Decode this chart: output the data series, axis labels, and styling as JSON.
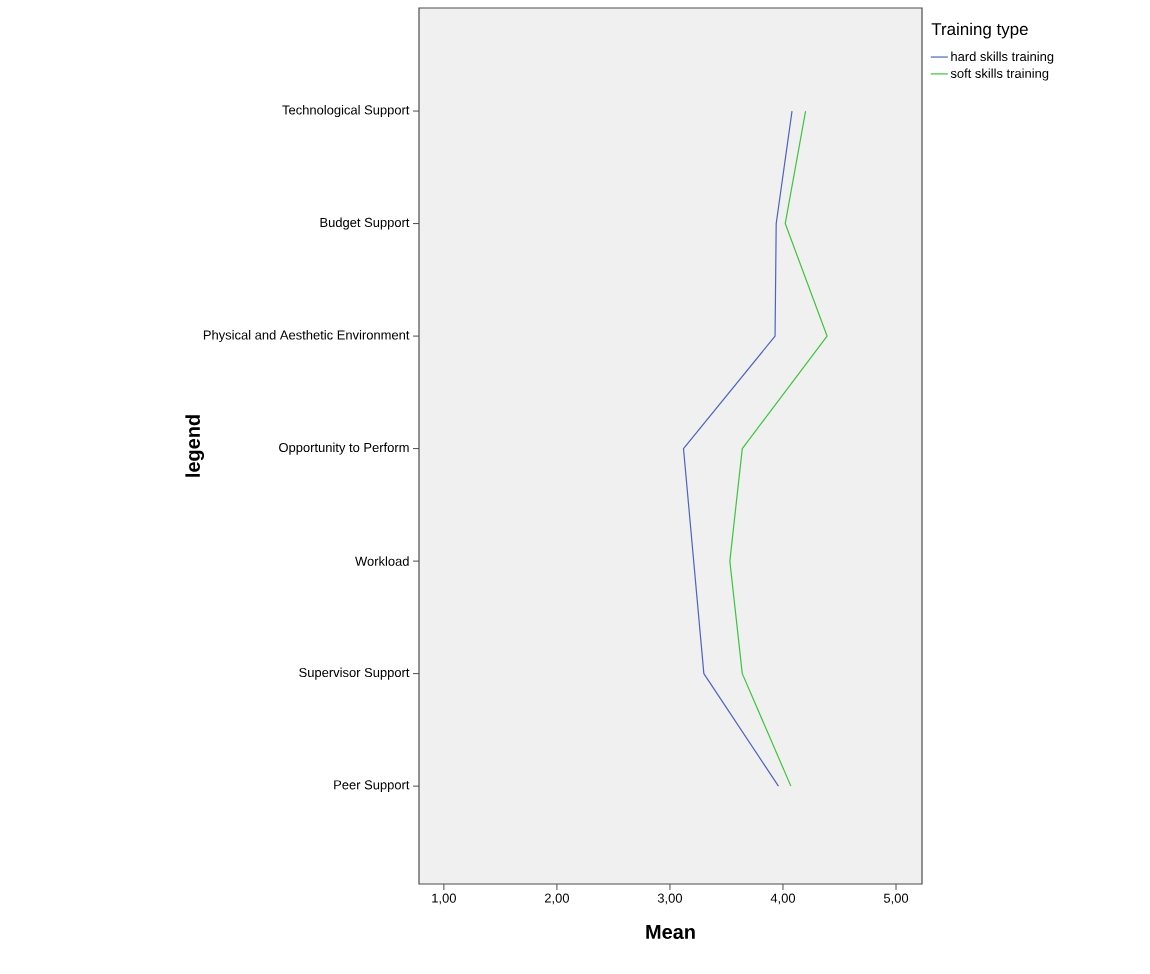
{
  "chart_data": {
    "type": "line",
    "orientation": "horizontal",
    "xlabel": "Mean",
    "ylabel": "legend",
    "legend_title": "Training type",
    "legend": "top right",
    "marker": "none",
    "line_style": "solid",
    "categories": [
      "Technological Support",
      "Budget Support",
      "Physical and Aesthetic Environment",
      "Opportunity to Perform",
      "Workload",
      "Supervisor Support",
      "Peer Support"
    ],
    "series": [
      {
        "name": "hard skills training",
        "color": "#4c63c0",
        "values": [
          4.08,
          3.94,
          3.93,
          3.12,
          3.21,
          3.3,
          3.96
        ]
      },
      {
        "name": "soft skills training",
        "color": "#3cc43c",
        "values": [
          4.2,
          4.02,
          4.39,
          3.64,
          3.53,
          3.64,
          4.07
        ]
      }
    ],
    "xlim": [
      0.78,
      5.23
    ],
    "xticks": [
      {
        "value": 1,
        "label": "1,00"
      },
      {
        "value": 2,
        "label": "2,00"
      },
      {
        "value": 3,
        "label": "3,00"
      },
      {
        "value": 4,
        "label": "4,00"
      },
      {
        "value": 5,
        "label": "5,00"
      }
    ]
  }
}
